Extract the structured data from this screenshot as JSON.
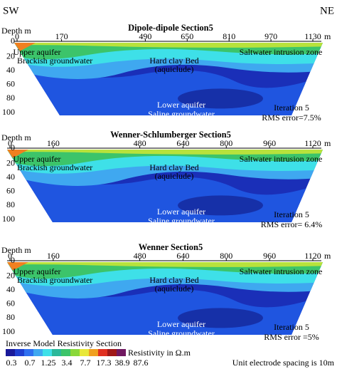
{
  "corners": {
    "left": "SW",
    "right": "NE"
  },
  "panels": [
    {
      "title": "Dipole-dipole Section5",
      "depth_label": "Depth m",
      "x_ticks": [
        "0",
        "170",
        "490",
        "650",
        "810",
        "970",
        "1130"
      ],
      "x_unit": "m",
      "depth_ticks": [
        "0",
        "20",
        "40",
        "60",
        "80",
        "100"
      ],
      "annotations": [
        "Upper aquifer",
        "Brackish groundwater",
        "Hard clay Bed",
        "(aquiclude)",
        "Saltwater intrusion zone",
        "Lower aquifer",
        "Saline groundwater",
        "Iteration 5",
        "RMS error=7.5%"
      ]
    },
    {
      "title": "Wenner-Schlumberger Section5",
      "depth_label": "Depth m",
      "x_ticks": [
        "0",
        "160",
        "480",
        "640",
        "800",
        "960",
        "1120"
      ],
      "x_unit": "m",
      "depth_ticks": [
        "0",
        "20",
        "40",
        "60",
        "80",
        "100"
      ],
      "annotations": [
        "Upper aquifer",
        "Brackish groundwater",
        "Hard clay Bed",
        "(aquiclude)",
        "Saltwater intrusion zone",
        "Lower aquifer",
        "Saline groundwater",
        "Iteration 5",
        "RMS error= 6.4%"
      ]
    },
    {
      "title": "Wenner Section5",
      "depth_label": "Depth m",
      "x_ticks": [
        "0",
        "160",
        "480",
        "640",
        "800",
        "960",
        "1120"
      ],
      "x_unit": "m",
      "depth_ticks": [
        "0",
        "20",
        "40",
        "60",
        "80",
        "100"
      ],
      "annotations": [
        "Upper aquifer",
        "Brackish groundwater",
        "Hard clay Bed",
        "(aquiclude)",
        "Saltwater intrusion zone",
        "Lower aquifer",
        "Saline groundwater",
        "Iteration 5",
        "RMS error =5%"
      ]
    }
  ],
  "legend": {
    "title": "Inverse Model Resistivity Section",
    "labels": [
      "0.3",
      "0.7",
      "1.25",
      "3.4",
      "7.7",
      "17.3",
      "38.9",
      "87.6"
    ],
    "unit": "Resistivity in Ω.m",
    "note": "Unit electrode spacing is 10m"
  }
}
